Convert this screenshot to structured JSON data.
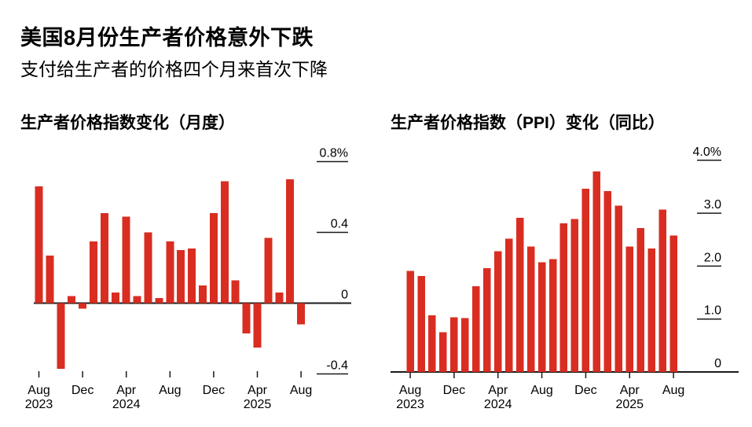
{
  "header": {
    "title": "美国8月份生产者价格意外下跌",
    "subtitle": "支付给生产者的价格四个月来首次下降"
  },
  "colors": {
    "bar": "#d92d21",
    "axis": "#1a1a1a",
    "text": "#000000",
    "background": "#ffffff"
  },
  "chart_data": [
    {
      "id": "monthly",
      "type": "bar",
      "title": "生产者价格指数变化（月度）",
      "unit": "%",
      "grid": false,
      "legend_position": "none",
      "ylim": [
        -0.4,
        0.8
      ],
      "categories": [
        "Aug 2023",
        "Sep 2023",
        "Oct 2023",
        "Nov 2023",
        "Dec 2023",
        "Jan 2024",
        "Feb 2024",
        "Mar 2024",
        "Apr 2024",
        "May 2024",
        "Jun 2024",
        "Jul 2024",
        "Aug 2024",
        "Sep 2024",
        "Oct 2024",
        "Nov 2024",
        "Dec 2024",
        "Jan 2025",
        "Feb 2025",
        "Mar 2025",
        "Apr 2025",
        "May 2025",
        "Jun 2025",
        "Jul 2025",
        "Aug 2025"
      ],
      "values": [
        0.66,
        0.27,
        -0.37,
        0.04,
        -0.03,
        0.35,
        0.51,
        0.06,
        0.49,
        0.04,
        0.4,
        0.03,
        0.35,
        0.3,
        0.31,
        0.1,
        0.51,
        0.69,
        0.13,
        -0.17,
        -0.25,
        0.37,
        0.06,
        0.7,
        -0.12
      ],
      "yticks": [
        {
          "label": "0.8%",
          "value": 0.8
        },
        {
          "label": "0.4",
          "value": 0.4
        },
        {
          "label": "0",
          "value": 0
        },
        {
          "label": "-0.4",
          "value": -0.4
        }
      ],
      "xticks": [
        {
          "index": 0,
          "month": "Aug",
          "year": "2023"
        },
        {
          "index": 4,
          "month": "Dec",
          "year": ""
        },
        {
          "index": 8,
          "month": "Apr",
          "year": "2024"
        },
        {
          "index": 12,
          "month": "Aug",
          "year": ""
        },
        {
          "index": 16,
          "month": "Dec",
          "year": ""
        },
        {
          "index": 20,
          "month": "Apr",
          "year": "2025"
        },
        {
          "index": 24,
          "month": "Aug",
          "year": ""
        }
      ]
    },
    {
      "id": "yoy",
      "type": "bar",
      "title": "生产者价格指数（PPI）变化（同比）",
      "unit": "%",
      "grid": false,
      "legend_position": "none",
      "ylim": [
        0,
        4.0
      ],
      "categories": [
        "Aug 2023",
        "Sep 2023",
        "Oct 2023",
        "Nov 2023",
        "Dec 2023",
        "Jan 2024",
        "Feb 2024",
        "Mar 2024",
        "Apr 2024",
        "May 2024",
        "Jun 2024",
        "Jul 2024",
        "Aug 2024",
        "Sep 2024",
        "Oct 2024",
        "Nov 2024",
        "Dec 2024",
        "Jan 2025",
        "Feb 2025",
        "Mar 2025",
        "Apr 2025",
        "May 2025",
        "Jun 2025",
        "Jul 2025",
        "Aug 2025"
      ],
      "values": [
        1.91,
        1.81,
        1.07,
        0.75,
        1.03,
        1.02,
        1.62,
        1.96,
        2.28,
        2.52,
        2.91,
        2.37,
        2.07,
        2.13,
        2.81,
        2.89,
        3.46,
        3.79,
        3.42,
        3.14,
        2.37,
        2.72,
        2.33,
        3.07,
        2.58
      ],
      "yticks": [
        {
          "label": "4.0%",
          "value": 4.0
        },
        {
          "label": "3.0",
          "value": 3.0
        },
        {
          "label": "2.0",
          "value": 2.0
        },
        {
          "label": "1.0",
          "value": 1.0
        },
        {
          "label": "0",
          "value": 0
        }
      ],
      "xticks": [
        {
          "index": 0,
          "month": "Aug",
          "year": "2023"
        },
        {
          "index": 4,
          "month": "Dec",
          "year": ""
        },
        {
          "index": 8,
          "month": "Apr",
          "year": "2024"
        },
        {
          "index": 12,
          "month": "Aug",
          "year": ""
        },
        {
          "index": 16,
          "month": "Dec",
          "year": ""
        },
        {
          "index": 20,
          "month": "Apr",
          "year": "2025"
        },
        {
          "index": 24,
          "month": "Aug",
          "year": ""
        }
      ]
    }
  ]
}
